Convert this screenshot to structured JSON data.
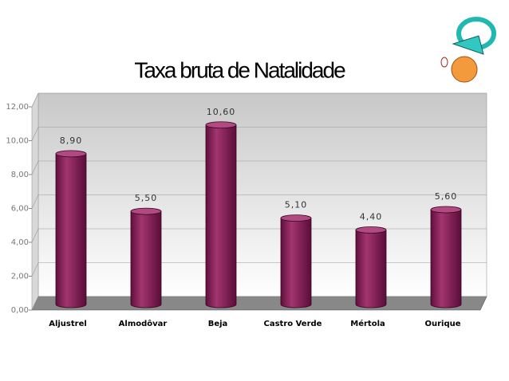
{
  "chart_data": {
    "type": "bar",
    "title": "Taxa bruta de Natalidade",
    "categories": [
      "Aljustrel",
      "Almodôvar",
      "Beja",
      "Castro Verde",
      "Mértola",
      "Ourique"
    ],
    "values": [
      8.9,
      5.5,
      10.6,
      5.1,
      4.4,
      5.6
    ],
    "value_labels": [
      "8,90",
      "5,50",
      "10,60",
      "5,10",
      "4,40",
      "5,60"
    ],
    "color": "#8b1f5e",
    "ylim": [
      0,
      12
    ],
    "yticks": [
      {
        "value": 0,
        "label": "0,00"
      },
      {
        "value": 2,
        "label": "2,00"
      },
      {
        "value": 4,
        "label": "4,00"
      },
      {
        "value": 6,
        "label": "6,00"
      },
      {
        "value": 8,
        "label": "8,00"
      },
      {
        "value": 10,
        "label": "10,00"
      },
      {
        "value": 12,
        "label": "12,00"
      }
    ],
    "grid": true
  }
}
